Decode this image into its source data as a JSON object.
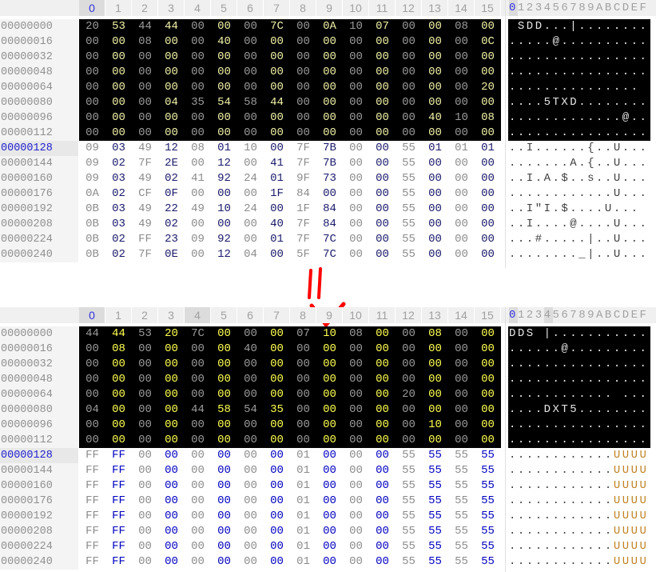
{
  "column_headers": [
    "0",
    "1",
    "2",
    "3",
    "4",
    "5",
    "6",
    "7",
    "8",
    "9",
    "10",
    "11",
    "12",
    "13",
    "14",
    "15"
  ],
  "text_header": "0123456789ABCDEF",
  "colors": {
    "header_bg": "#000000",
    "header_even": "#9a9a9a",
    "header_odd_before": "#f0f0a8",
    "header_odd_after": "#ffff50",
    "data_even": "#8c8c8c",
    "data_odd_before": "#1a1a6a",
    "data_odd_after": "#0000c0",
    "arrow": "#ff0000"
  },
  "before": {
    "selected_columns": [
      0
    ],
    "rows": [
      {
        "offset": "00000000",
        "hex": [
          "20",
          "53",
          "44",
          "44",
          "00",
          "00",
          "00",
          "7C",
          "00",
          "0A",
          "10",
          "07",
          "00",
          "00",
          "08",
          "00"
        ],
        "text": " SDD...|........"
      },
      {
        "offset": "00000016",
        "hex": [
          "00",
          "00",
          "08",
          "00",
          "00",
          "40",
          "00",
          "00",
          "00",
          "00",
          "00",
          "00",
          "00",
          "00",
          "00",
          "0C"
        ],
        "text": ".....@.........."
      },
      {
        "offset": "00000032",
        "hex": [
          "00",
          "00",
          "00",
          "00",
          "00",
          "00",
          "00",
          "00",
          "00",
          "00",
          "00",
          "00",
          "00",
          "00",
          "00",
          "00"
        ],
        "text": "................"
      },
      {
        "offset": "00000048",
        "hex": [
          "00",
          "00",
          "00",
          "00",
          "00",
          "00",
          "00",
          "00",
          "00",
          "00",
          "00",
          "00",
          "00",
          "00",
          "00",
          "00"
        ],
        "text": "................"
      },
      {
        "offset": "00000064",
        "hex": [
          "00",
          "00",
          "00",
          "00",
          "00",
          "00",
          "00",
          "00",
          "00",
          "00",
          "00",
          "00",
          "00",
          "00",
          "00",
          "20"
        ],
        "text": "............... "
      },
      {
        "offset": "00000080",
        "hex": [
          "00",
          "00",
          "00",
          "04",
          "35",
          "54",
          "58",
          "44",
          "00",
          "00",
          "00",
          "00",
          "00",
          "00",
          "00",
          "00"
        ],
        "text": "....5TXD........"
      },
      {
        "offset": "00000096",
        "hex": [
          "00",
          "00",
          "00",
          "00",
          "00",
          "00",
          "00",
          "00",
          "00",
          "00",
          "00",
          "00",
          "00",
          "40",
          "10",
          "08"
        ],
        "text": ".............@.."
      },
      {
        "offset": "00000112",
        "hex": [
          "00",
          "00",
          "00",
          "00",
          "00",
          "00",
          "00",
          "00",
          "00",
          "00",
          "00",
          "00",
          "00",
          "00",
          "00",
          "00"
        ],
        "text": "................"
      },
      {
        "offset": "00000128",
        "hex": [
          "09",
          "03",
          "49",
          "12",
          "08",
          "01",
          "10",
          "00",
          "7F",
          "7B",
          "00",
          "00",
          "55",
          "01",
          "01",
          "01"
        ],
        "text": "..I......{..U..."
      },
      {
        "offset": "00000144",
        "hex": [
          "09",
          "02",
          "7F",
          "2E",
          "00",
          "12",
          "00",
          "41",
          "7F",
          "7B",
          "00",
          "00",
          "55",
          "00",
          "00",
          "00"
        ],
        "text": ".......A.{..U..."
      },
      {
        "offset": "00000160",
        "hex": [
          "09",
          "03",
          "49",
          "02",
          "41",
          "92",
          "24",
          "01",
          "9F",
          "73",
          "00",
          "00",
          "55",
          "00",
          "00",
          "00"
        ],
        "text": "..I.A.$..s..U..."
      },
      {
        "offset": "00000176",
        "hex": [
          "0A",
          "02",
          "CF",
          "0F",
          "00",
          "00",
          "00",
          "1F",
          "84",
          "00",
          "00",
          "00",
          "55",
          "00",
          "00",
          "00"
        ],
        "text": "............U..."
      },
      {
        "offset": "00000192",
        "hex": [
          "0B",
          "03",
          "49",
          "22",
          "49",
          "10",
          "24",
          "00",
          "1F",
          "84",
          "00",
          "00",
          "55",
          "00",
          "00",
          "00"
        ],
        "text": "..I\"I.$....U..."
      },
      {
        "offset": "00000208",
        "hex": [
          "0B",
          "03",
          "49",
          "02",
          "00",
          "00",
          "00",
          "40",
          "7F",
          "84",
          "00",
          "00",
          "55",
          "00",
          "00",
          "00"
        ],
        "text": "..I....@....U..."
      },
      {
        "offset": "00000224",
        "hex": [
          "0B",
          "02",
          "FF",
          "23",
          "09",
          "92",
          "00",
          "01",
          "7F",
          "7C",
          "00",
          "00",
          "55",
          "00",
          "00",
          "00"
        ],
        "text": "...#.....|..U..."
      },
      {
        "offset": "00000240",
        "hex": [
          "0B",
          "02",
          "7F",
          "0E",
          "00",
          "12",
          "04",
          "00",
          "5F",
          "7C",
          "00",
          "00",
          "55",
          "00",
          "00",
          "00"
        ],
        "text": "........_|..U..."
      }
    ]
  },
  "after": {
    "selected_columns": [
      0,
      4
    ],
    "rows": [
      {
        "offset": "00000000",
        "hex": [
          "44",
          "44",
          "53",
          "20",
          "7C",
          "00",
          "00",
          "00",
          "07",
          "10",
          "08",
          "00",
          "00",
          "08",
          "00",
          "00"
        ],
        "text": "DDS |..........."
      },
      {
        "offset": "00000016",
        "hex": [
          "00",
          "08",
          "00",
          "00",
          "00",
          "00",
          "40",
          "00",
          "00",
          "00",
          "00",
          "00",
          "00",
          "00",
          "00",
          "00"
        ],
        "text": "......@........."
      },
      {
        "offset": "00000032",
        "hex": [
          "00",
          "00",
          "00",
          "00",
          "00",
          "00",
          "00",
          "00",
          "00",
          "00",
          "00",
          "00",
          "00",
          "00",
          "00",
          "00"
        ],
        "text": "................"
      },
      {
        "offset": "00000048",
        "hex": [
          "00",
          "00",
          "00",
          "00",
          "00",
          "00",
          "00",
          "00",
          "00",
          "00",
          "00",
          "00",
          "00",
          "00",
          "00",
          "00"
        ],
        "text": "................"
      },
      {
        "offset": "00000064",
        "hex": [
          "00",
          "00",
          "00",
          "00",
          "00",
          "00",
          "00",
          "00",
          "00",
          "00",
          "00",
          "00",
          "20",
          "00",
          "00",
          "00"
        ],
        "text": "............ ..."
      },
      {
        "offset": "00000080",
        "hex": [
          "04",
          "00",
          "00",
          "00",
          "44",
          "58",
          "54",
          "35",
          "00",
          "00",
          "00",
          "00",
          "00",
          "00",
          "00",
          "00"
        ],
        "text": "....DXT5........"
      },
      {
        "offset": "00000096",
        "hex": [
          "00",
          "00",
          "00",
          "00",
          "00",
          "00",
          "00",
          "00",
          "00",
          "00",
          "00",
          "00",
          "00",
          "10",
          "00",
          "00"
        ],
        "text": "................"
      },
      {
        "offset": "00000112",
        "hex": [
          "00",
          "00",
          "00",
          "00",
          "00",
          "00",
          "00",
          "00",
          "00",
          "00",
          "00",
          "00",
          "00",
          "00",
          "00",
          "00"
        ],
        "text": "................"
      },
      {
        "offset": "00000128",
        "hex": [
          "FF",
          "FF",
          "00",
          "00",
          "00",
          "00",
          "00",
          "00",
          "01",
          "00",
          "00",
          "00",
          "55",
          "55",
          "55",
          "55"
        ],
        "text": "............UUUU"
      },
      {
        "offset": "00000144",
        "hex": [
          "FF",
          "FF",
          "00",
          "00",
          "00",
          "00",
          "00",
          "00",
          "01",
          "00",
          "00",
          "00",
          "55",
          "55",
          "55",
          "55"
        ],
        "text": "............UUUU"
      },
      {
        "offset": "00000160",
        "hex": [
          "FF",
          "FF",
          "00",
          "00",
          "00",
          "00",
          "00",
          "00",
          "01",
          "00",
          "00",
          "00",
          "55",
          "55",
          "55",
          "55"
        ],
        "text": "............UUUU"
      },
      {
        "offset": "00000176",
        "hex": [
          "FF",
          "FF",
          "00",
          "00",
          "00",
          "00",
          "00",
          "00",
          "01",
          "00",
          "00",
          "00",
          "55",
          "55",
          "55",
          "55"
        ],
        "text": "............UUUU"
      },
      {
        "offset": "00000192",
        "hex": [
          "FF",
          "FF",
          "00",
          "00",
          "00",
          "00",
          "00",
          "00",
          "01",
          "00",
          "00",
          "00",
          "55",
          "55",
          "55",
          "55"
        ],
        "text": "............UUUU"
      },
      {
        "offset": "00000208",
        "hex": [
          "FF",
          "FF",
          "00",
          "00",
          "00",
          "00",
          "00",
          "00",
          "01",
          "00",
          "00",
          "00",
          "55",
          "55",
          "55",
          "55"
        ],
        "text": "............UUUU"
      },
      {
        "offset": "00000224",
        "hex": [
          "FF",
          "FF",
          "00",
          "00",
          "00",
          "00",
          "00",
          "00",
          "01",
          "00",
          "00",
          "00",
          "55",
          "55",
          "55",
          "55"
        ],
        "text": "............UUUU"
      },
      {
        "offset": "00000240",
        "hex": [
          "FF",
          "FF",
          "00",
          "00",
          "00",
          "00",
          "00",
          "00",
          "01",
          "00",
          "00",
          "00",
          "55",
          "55",
          "55",
          "55"
        ],
        "text": "............UUUU"
      }
    ]
  }
}
